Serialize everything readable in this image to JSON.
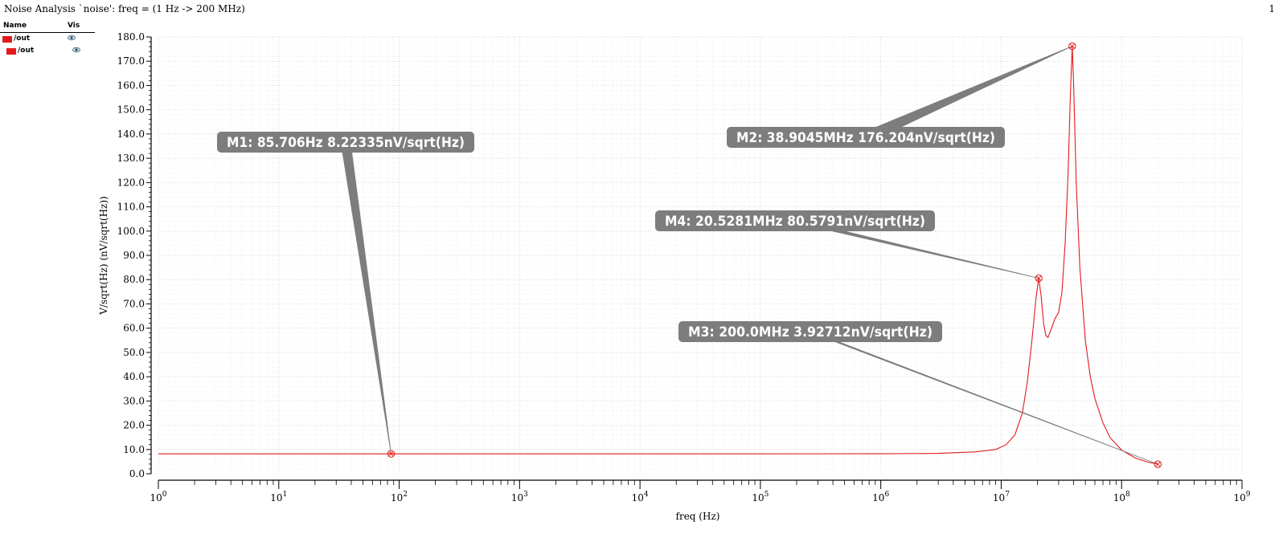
{
  "page": {
    "title": "Noise Analysis `noise': freq = (1 Hz -> 200 MHz)",
    "page_number": "1"
  },
  "legend": {
    "name_header": "Name",
    "vis_header": "Vis",
    "items": [
      {
        "label": "/out",
        "color": "#e31a1c"
      },
      {
        "label": "/out",
        "color": "#e31a1c"
      }
    ]
  },
  "chart_data": {
    "type": "line",
    "xlabel": "freq (Hz)",
    "ylabel": "V/sqrt(Hz) (nV/sqrt(Hz))",
    "xscale": "log",
    "xlim": [
      1,
      1000000000
    ],
    "ylim": [
      0,
      180
    ],
    "x_tick_exponents": [
      0,
      1,
      2,
      3,
      4,
      5,
      6,
      7,
      8,
      9
    ],
    "y_ticks": [
      "0.0",
      "10.0",
      "20.0",
      "30.0",
      "40.0",
      "50.0",
      "60.0",
      "70.0",
      "80.0",
      "90.0",
      "100.0",
      "110.0",
      "120.0",
      "130.0",
      "140.0",
      "150.0",
      "160.0",
      "170.0",
      "180.0"
    ],
    "grid": true,
    "series": [
      {
        "color": "#e31a1c",
        "points": [
          [
            1,
            8.22
          ],
          [
            100,
            8.22
          ],
          [
            10000,
            8.22
          ],
          [
            1000000,
            8.23
          ],
          [
            3000000,
            8.4
          ],
          [
            6000000,
            9.0
          ],
          [
            9000000,
            10.0
          ],
          [
            11000000,
            12.0
          ],
          [
            13000000,
            16.0
          ],
          [
            15000000,
            25.0
          ],
          [
            16500000,
            38.0
          ],
          [
            18000000,
            55.0
          ],
          [
            19500000,
            73.0
          ],
          [
            20528100,
            80.58
          ],
          [
            21500000,
            73.0
          ],
          [
            22500000,
            62.0
          ],
          [
            23500000,
            57.0
          ],
          [
            24500000,
            56.2
          ],
          [
            26000000,
            59.5
          ],
          [
            28000000,
            64.0
          ],
          [
            30000000,
            66.5
          ],
          [
            32000000,
            75.0
          ],
          [
            34000000,
            95.0
          ],
          [
            36000000,
            125.0
          ],
          [
            37500000,
            155.0
          ],
          [
            38904500,
            176.2
          ],
          [
            40000000,
            160.0
          ],
          [
            42000000,
            120.0
          ],
          [
            45000000,
            85.0
          ],
          [
            50000000,
            55.0
          ],
          [
            55000000,
            40.0
          ],
          [
            60000000,
            31.0
          ],
          [
            70000000,
            21.0
          ],
          [
            80000000,
            15.0
          ],
          [
            100000000,
            9.8
          ],
          [
            130000000,
            6.5
          ],
          [
            160000000,
            5.0
          ],
          [
            200000000,
            3.93
          ]
        ]
      }
    ],
    "markers": [
      {
        "id": "M1",
        "x": 85.706,
        "y": 8.22335,
        "label": "M1: 85.706Hz 8.22335nV/sqrt(Hz)"
      },
      {
        "id": "M2",
        "x": 38904500,
        "y": 176.204,
        "label": "M2: 38.9045MHz 176.204nV/sqrt(Hz)"
      },
      {
        "id": "M3",
        "x": 200000000,
        "y": 3.92712,
        "label": "M3: 200.0MHz 3.92712nV/sqrt(Hz)"
      },
      {
        "id": "M4",
        "x": 20528100,
        "y": 80.5791,
        "label": "M4: 20.5281MHz 80.5791nV/sqrt(Hz)"
      }
    ]
  }
}
